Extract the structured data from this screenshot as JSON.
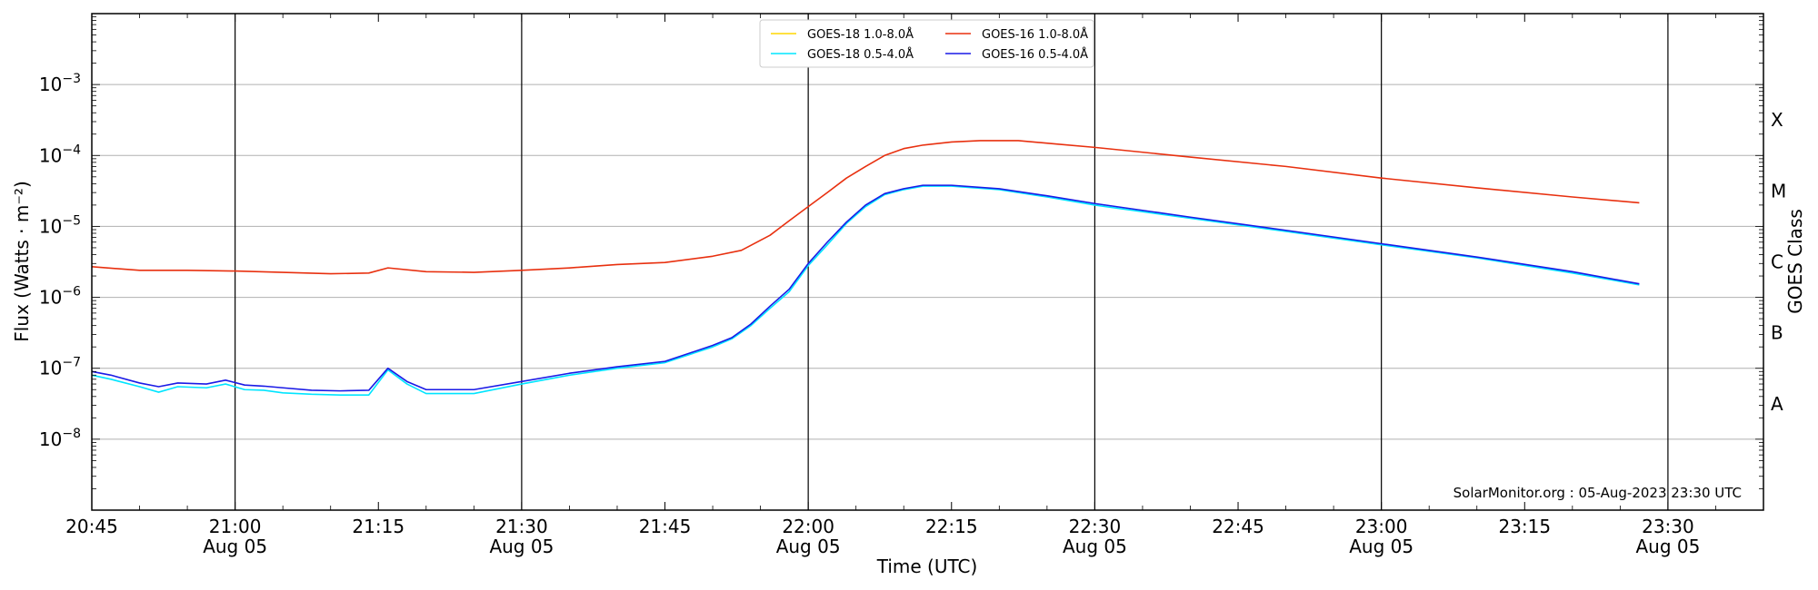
{
  "chart_data": {
    "type": "line",
    "xlabel": "Time (UTC)",
    "ylabel": "Flux (Watts · m⁻²)",
    "y2label": "GOES Class",
    "yscale": "log",
    "xlim": [
      "20:45",
      "23:40"
    ],
    "ylim": [
      1e-09,
      0.01
    ],
    "grid": "horizontal",
    "legend_position": "top-center",
    "credit": "SolarMonitor.org : 05-Aug-2023 23:30 UTC",
    "x_ticks": [
      {
        "t": "20:45",
        "line1": "20:45",
        "line2": ""
      },
      {
        "t": "21:00",
        "line1": "21:00",
        "line2": "Aug 05"
      },
      {
        "t": "21:15",
        "line1": "21:15",
        "line2": ""
      },
      {
        "t": "21:30",
        "line1": "21:30",
        "line2": "Aug 05"
      },
      {
        "t": "21:45",
        "line1": "21:45",
        "line2": ""
      },
      {
        "t": "22:00",
        "line1": "22:00",
        "line2": "Aug 05"
      },
      {
        "t": "22:15",
        "line1": "22:15",
        "line2": ""
      },
      {
        "t": "22:30",
        "line1": "22:30",
        "line2": "Aug 05"
      },
      {
        "t": "22:45",
        "line1": "22:45",
        "line2": ""
      },
      {
        "t": "23:00",
        "line1": "23:00",
        "line2": "Aug 05"
      },
      {
        "t": "23:15",
        "line1": "23:15",
        "line2": ""
      },
      {
        "t": "23:30",
        "line1": "23:30",
        "line2": "Aug 05"
      }
    ],
    "y_ticks": [
      {
        "exp": -8,
        "base": "10",
        "sup": "−8"
      },
      {
        "exp": -7,
        "base": "10",
        "sup": "−7"
      },
      {
        "exp": -6,
        "base": "10",
        "sup": "−6"
      },
      {
        "exp": -5,
        "base": "10",
        "sup": "−5"
      },
      {
        "exp": -4,
        "base": "10",
        "sup": "−4"
      },
      {
        "exp": -3,
        "base": "10",
        "sup": "−3"
      }
    ],
    "vlines": [
      "21:00",
      "21:30",
      "22:00",
      "22:30",
      "23:00",
      "23:30"
    ],
    "goes_classes": [
      {
        "label": "A",
        "exp": -7.5
      },
      {
        "label": "B",
        "exp": -6.5
      },
      {
        "label": "C",
        "exp": -5.5
      },
      {
        "label": "M",
        "exp": -4.5
      },
      {
        "label": "X",
        "exp": -3.5
      }
    ],
    "colors": {
      "goes18_long": "#ffd700",
      "goes16_long": "#e8300f",
      "goes18_short": "#00e5ff",
      "goes16_short": "#1a1ae6",
      "grid": "#b0b0b0",
      "vline": "#000000"
    },
    "series": [
      {
        "name": "GOES-18 1.0-8.0Å",
        "color_key": "goes18_long",
        "points": []
      },
      {
        "name": "GOES-16 1.0-8.0Å",
        "color_key": "goes16_long",
        "points": [
          [
            "20:45",
            2.7e-06
          ],
          [
            "20:50",
            2.4e-06
          ],
          [
            "20:55",
            2.4e-06
          ],
          [
            "21:00",
            2.35e-06
          ],
          [
            "21:05",
            2.25e-06
          ],
          [
            "21:10",
            2.15e-06
          ],
          [
            "21:14",
            2.2e-06
          ],
          [
            "21:16",
            2.6e-06
          ],
          [
            "21:20",
            2.3e-06
          ],
          [
            "21:25",
            2.25e-06
          ],
          [
            "21:30",
            2.4e-06
          ],
          [
            "21:35",
            2.6e-06
          ],
          [
            "21:40",
            2.9e-06
          ],
          [
            "21:45",
            3.1e-06
          ],
          [
            "21:50",
            3.8e-06
          ],
          [
            "21:53",
            4.6e-06
          ],
          [
            "21:56",
            7.5e-06
          ],
          [
            "21:58",
            1.2e-05
          ],
          [
            "22:00",
            1.9e-05
          ],
          [
            "22:02",
            3e-05
          ],
          [
            "22:04",
            4.8e-05
          ],
          [
            "22:06",
            7e-05
          ],
          [
            "22:08",
            0.0001
          ],
          [
            "22:10",
            0.000125
          ],
          [
            "22:12",
            0.00014
          ],
          [
            "22:15",
            0.000155
          ],
          [
            "22:18",
            0.000162
          ],
          [
            "22:22",
            0.000162
          ],
          [
            "22:26",
            0.000145
          ],
          [
            "22:30",
            0.00013
          ],
          [
            "22:40",
            9.5e-05
          ],
          [
            "22:50",
            7e-05
          ],
          [
            "23:00",
            4.8e-05
          ],
          [
            "23:10",
            3.5e-05
          ],
          [
            "23:20",
            2.6e-05
          ],
          [
            "23:27",
            2.15e-05
          ]
        ]
      },
      {
        "name": "GOES-18 0.5-4.0Å",
        "color_key": "goes18_short",
        "points": [
          [
            "20:45",
            8e-08
          ],
          [
            "20:47",
            7e-08
          ],
          [
            "20:50",
            5.5e-08
          ],
          [
            "20:52",
            4.6e-08
          ],
          [
            "20:54",
            5.5e-08
          ],
          [
            "20:57",
            5.3e-08
          ],
          [
            "20:59",
            6e-08
          ],
          [
            "21:01",
            5e-08
          ],
          [
            "21:03",
            4.9e-08
          ],
          [
            "21:05",
            4.5e-08
          ],
          [
            "21:08",
            4.3e-08
          ],
          [
            "21:11",
            4.2e-08
          ],
          [
            "21:14",
            4.2e-08
          ],
          [
            "21:16",
            9.5e-08
          ],
          [
            "21:18",
            6e-08
          ],
          [
            "21:20",
            4.4e-08
          ],
          [
            "21:25",
            4.4e-08
          ],
          [
            "21:30",
            6e-08
          ],
          [
            "21:35",
            8e-08
          ],
          [
            "21:40",
            1e-07
          ],
          [
            "21:45",
            1.2e-07
          ],
          [
            "21:50",
            2e-07
          ],
          [
            "21:52",
            2.6e-07
          ],
          [
            "21:54",
            4e-07
          ],
          [
            "21:56",
            7e-07
          ],
          [
            "21:58",
            1.2e-06
          ],
          [
            "22:00",
            2.8e-06
          ],
          [
            "22:02",
            5.5e-06
          ],
          [
            "22:04",
            1.1e-05
          ],
          [
            "22:06",
            1.9e-05
          ],
          [
            "22:08",
            2.8e-05
          ],
          [
            "22:10",
            3.3e-05
          ],
          [
            "22:12",
            3.7e-05
          ],
          [
            "22:15",
            3.7e-05
          ],
          [
            "22:20",
            3.3e-05
          ],
          [
            "22:25",
            2.6e-05
          ],
          [
            "22:30",
            2e-05
          ],
          [
            "22:40",
            1.3e-05
          ],
          [
            "22:50",
            8.5e-06
          ],
          [
            "23:00",
            5.5e-06
          ],
          [
            "23:10",
            3.6e-06
          ],
          [
            "23:20",
            2.2e-06
          ],
          [
            "23:27",
            1.5e-06
          ]
        ]
      },
      {
        "name": "GOES-16 0.5-4.0Å",
        "color_key": "goes16_short",
        "points": [
          [
            "20:45",
            9e-08
          ],
          [
            "20:47",
            8e-08
          ],
          [
            "20:50",
            6.2e-08
          ],
          [
            "20:52",
            5.5e-08
          ],
          [
            "20:54",
            6.2e-08
          ],
          [
            "20:57",
            6e-08
          ],
          [
            "20:59",
            6.8e-08
          ],
          [
            "21:01",
            5.8e-08
          ],
          [
            "21:03",
            5.6e-08
          ],
          [
            "21:05",
            5.3e-08
          ],
          [
            "21:08",
            4.9e-08
          ],
          [
            "21:11",
            4.8e-08
          ],
          [
            "21:14",
            4.9e-08
          ],
          [
            "21:16",
            1e-07
          ],
          [
            "21:18",
            6.5e-08
          ],
          [
            "21:20",
            5e-08
          ],
          [
            "21:25",
            5e-08
          ],
          [
            "21:30",
            6.5e-08
          ],
          [
            "21:35",
            8.5e-08
          ],
          [
            "21:40",
            1.05e-07
          ],
          [
            "21:45",
            1.25e-07
          ],
          [
            "21:50",
            2.1e-07
          ],
          [
            "21:52",
            2.7e-07
          ],
          [
            "21:54",
            4.2e-07
          ],
          [
            "21:56",
            7.5e-07
          ],
          [
            "21:58",
            1.3e-06
          ],
          [
            "22:00",
            3e-06
          ],
          [
            "22:02",
            6e-06
          ],
          [
            "22:04",
            1.15e-05
          ],
          [
            "22:06",
            2e-05
          ],
          [
            "22:08",
            2.9e-05
          ],
          [
            "22:10",
            3.4e-05
          ],
          [
            "22:12",
            3.8e-05
          ],
          [
            "22:15",
            3.8e-05
          ],
          [
            "22:20",
            3.4e-05
          ],
          [
            "22:25",
            2.7e-05
          ],
          [
            "22:30",
            2.1e-05
          ],
          [
            "22:40",
            1.35e-05
          ],
          [
            "22:50",
            8.8e-06
          ],
          [
            "23:00",
            5.7e-06
          ],
          [
            "23:10",
            3.7e-06
          ],
          [
            "23:20",
            2.3e-06
          ],
          [
            "23:27",
            1.55e-06
          ]
        ]
      }
    ],
    "legend": [
      {
        "label": "GOES-18 1.0-8.0Å",
        "color_key": "goes18_long"
      },
      {
        "label": "GOES-18 0.5-4.0Å",
        "color_key": "goes18_short"
      },
      {
        "label": "GOES-16 1.0-8.0Å",
        "color_key": "goes16_long"
      },
      {
        "label": "GOES-16 0.5-4.0Å",
        "color_key": "goes16_short"
      }
    ]
  }
}
